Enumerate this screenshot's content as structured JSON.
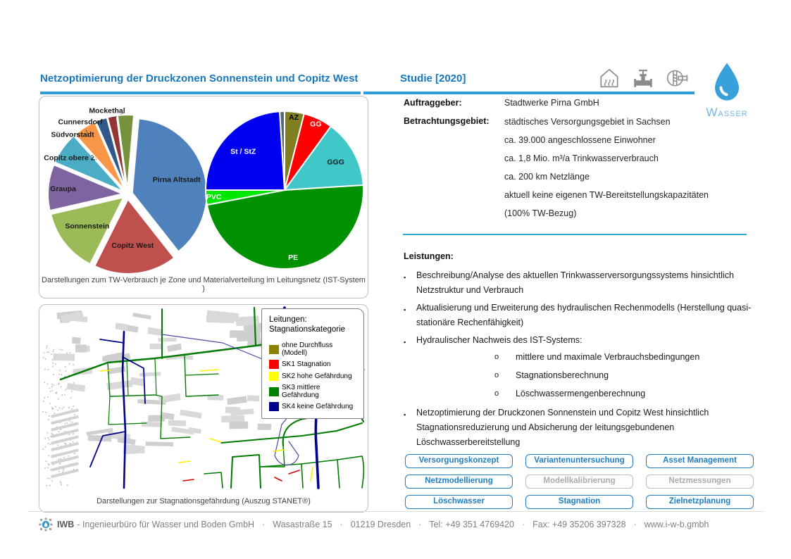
{
  "header": {
    "title": "Netzoptimierung der Druckzonen Sonnenstein und Copitz West",
    "study_tag": "Studie [2020]",
    "icon_names": [
      "house-heating-icon",
      "pipe-valve-icon",
      "water-meter-icon"
    ],
    "brand": {
      "display_big": "W",
      "display_small": "ASSER",
      "drop_color": "#38A1DC",
      "text_color": "#6FB9E6"
    }
  },
  "info": {
    "client_label": "Auftraggeber:",
    "client_value": "Stadtwerke Pirna GmbH",
    "area_label": "Betrachtungsgebiet:",
    "area_lines": [
      "städtisches Versorgungsgebiet in Sachsen",
      "ca. 39.000 angeschlossene Einwohner",
      "ca. 1,8 Mio. m³/a Trinkwasserverbrauch",
      "ca. 200 km Netzlänge",
      "aktuell keine eigenen TW-Bereitstellungskapazitäten",
      "(100% TW-Bezug)"
    ]
  },
  "services": {
    "heading": "Leistungen:",
    "items": [
      {
        "text": "Beschreibung/Analyse des aktuellen Trinkwasserversorgungssystems hinsichtlich Netzstruktur und Verbrauch"
      },
      {
        "text": "Aktualisierung und Erweiterung des hydraulischen Rechenmodells (Herstellung quasi-stationäre Rechenfähigkeit)"
      },
      {
        "text": "Hydraulischer Nachweis des IST-Systems:",
        "sub": [
          "mittlere und maximale Verbrauchsbedingungen",
          "Stagnationsberechnung",
          "Löschwassermengenberechnung"
        ]
      },
      {
        "text": "Netzoptimierung der Druckzonen Sonnenstein und Copitz West hinsichtlich Stagnationsreduzierung und Absicherung der leitungsgebundenen Löschwasserbereitstellung"
      }
    ]
  },
  "tags": {
    "accent_color": "#1F7EC2",
    "disabled_color": "#ABABAB",
    "buttons": [
      {
        "label": "Versorgungskonzept",
        "enabled": true
      },
      {
        "label": "Variantenuntersuchung",
        "enabled": true
      },
      {
        "label": "Asset Management",
        "enabled": true
      },
      {
        "label": "Netzmodellierung",
        "enabled": true
      },
      {
        "label": "Modellkalibrierung",
        "enabled": false
      },
      {
        "label": "Netzmessungen",
        "enabled": false
      },
      {
        "label": "Löschwasser",
        "enabled": true
      },
      {
        "label": "Stagnation",
        "enabled": true
      },
      {
        "label": "Zielnetzplanung",
        "enabled": true
      }
    ]
  },
  "figures": {
    "pies_caption": "Darstellungen zum TW-Verbrauch je Zone und Materialverteilung im Leitungsnetz (IST-System )",
    "map_caption": "Darstellungen zur Stagnationsgefährdung (Auszug STANET®)",
    "map_legend": {
      "title_line1": "Leitungen:",
      "title_line2": "Stagnationskategorie",
      "items": [
        {
          "label": "ohne Durchfluss (Modell)",
          "color": "#8B8000"
        },
        {
          "label": "SK1 Stagnation",
          "color": "#FF0000"
        },
        {
          "label": "SK2 hohe Gefährdung",
          "color": "#FFFF00"
        },
        {
          "label": "SK3 mittlere Gefährdung",
          "color": "#008000"
        },
        {
          "label": "SK4 keine Gefährdung",
          "color": "#00008B"
        }
      ]
    }
  },
  "chart_data": [
    {
      "type": "pie",
      "name": "TW-Verbrauch je Zone (IST-System)",
      "unit": "%",
      "values_note": "percent estimated from slice angles",
      "start_angle": 5,
      "exploded": true,
      "slices": [
        {
          "label": "Pirna Altstadt",
          "value": 38,
          "color": "#4F81BD",
          "label_inside": true,
          "label_color": "#1a1a1a"
        },
        {
          "label": "Copitz West",
          "value": 18,
          "color": "#C0504D",
          "label_inside": true,
          "label_color": "#1a1a1a"
        },
        {
          "label": "Sonnenstein",
          "value": 14,
          "color": "#9BBB59",
          "label_inside": true,
          "label_color": "#1a1a1a"
        },
        {
          "label": "Graupa",
          "value": 10,
          "color": "#8064A2",
          "label_inside": true,
          "label_color": "#1a1a1a"
        },
        {
          "label": "Copitz obere Zone",
          "value": 7,
          "color": "#4BACC6",
          "label_inside": true,
          "label_color": "#1a1a1a"
        },
        {
          "label": "Südvorstadt",
          "value": 5,
          "color": "#F79646",
          "label_inside": false,
          "label_color": "#1a1a1a"
        },
        {
          "label": "Cunnersdorf",
          "value": 2.5,
          "color": "#31588A",
          "label_inside": false,
          "label_color": "#1a1a1a"
        },
        {
          "label": "Mockethal",
          "value": 2,
          "color": "#943634",
          "label_inside": false,
          "label_color": "#1a1a1a"
        },
        {
          "label": "",
          "value": 3.5,
          "color": "#76923C",
          "label_inside": true,
          "label_color": "#1a1a1a"
        }
      ]
    },
    {
      "type": "pie",
      "name": "Materialverteilung im Leitungsnetz (IST-System)",
      "unit": "%",
      "values_note": "percent estimated from slice angles",
      "start_angle": -3.6,
      "exploded": false,
      "slices": [
        {
          "label": "",
          "value": 1,
          "color": "#5B6670",
          "label_inside": false,
          "label_color": "#ffffff"
        },
        {
          "label": "AZ",
          "value": 4,
          "color": "#7F7F1F",
          "label_inside": true,
          "label_color": "#000000"
        },
        {
          "label": "GG",
          "value": 6,
          "color": "#FF0000",
          "label_inside": true,
          "label_color": "#ffffff"
        },
        {
          "label": "GGG",
          "value": 14,
          "color": "#40C8C8",
          "label_inside": true,
          "label_color": "#1a1a1a"
        },
        {
          "label": "PE",
          "value": 48,
          "color": "#009100",
          "label_inside": true,
          "label_color": "#ffffff"
        },
        {
          "label": "PVC",
          "value": 3,
          "color": "#00E800",
          "label_inside": true,
          "label_color": "#ffffff"
        },
        {
          "label": "St / StZ",
          "value": 24,
          "color": "#0000F0",
          "label_inside": true,
          "label_color": "#ffffff"
        }
      ]
    }
  ],
  "footer": {
    "brand": "IWB",
    "company": "- Ingenieurbüro für Wasser und Boden GmbH",
    "separator": "·",
    "items": [
      "Wasastraße 15",
      "01219 Dresden",
      "Tel:  +49 351 4769420",
      "Fax: +49 35206 397328",
      "www.i-w-b.gmbh"
    ]
  }
}
